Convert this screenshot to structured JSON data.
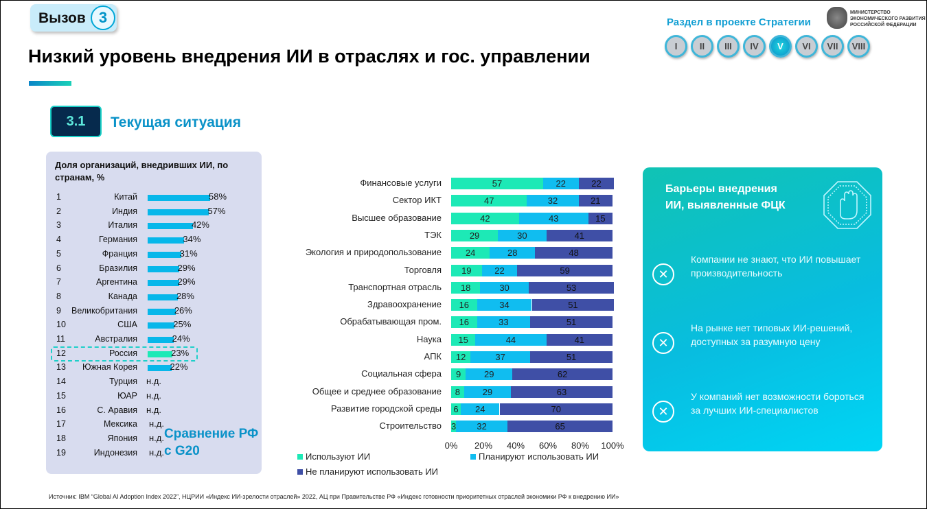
{
  "header": {
    "badge_label": "Вызов",
    "badge_number": "3",
    "title": "Низкий уровень внедрения ИИ в отраслях и гос. управлении",
    "strategy_label": "Раздел в проекте Стратегии",
    "ministry": "МИНИСТЕРСТВО ЭКОНОМИЧЕСКОГО РАЗВИТИЯ РОССИЙСКОЙ ФЕДЕРАЦИИ",
    "sections": [
      "I",
      "II",
      "III",
      "IV",
      "V",
      "VI",
      "VII",
      "VIII"
    ],
    "active_section": "V"
  },
  "section": {
    "number": "3.1",
    "title": "Текущая ситуация"
  },
  "comparison_label": "Сравнение РФ с G20",
  "barriers": {
    "title": "Барьеры внедрения ИИ, выявленные ФЦК",
    "icon": "stop-hand-icon",
    "items": [
      "Компании не знают, что ИИ повышает производительность",
      "На рынке нет типовых ИИ-решений, доступных за разумную цену",
      "У компаний нет возможности бороться за лучших ИИ-специалистов"
    ]
  },
  "source": "Источник: IBM “Global AI Adoption Index 2022”, НЦРИИ «Индекс ИИ-зрелости отраслей» 2022, АЦ при Правительстве РФ «Индекс готовности приоритетных отраслей экономики РФ к внедрению ИИ»",
  "chart_data": [
    {
      "type": "bar",
      "orientation": "horizontal",
      "title": "Доля организаций, внедривших ИИ, по странам, %",
      "ranks": [
        1,
        2,
        3,
        4,
        5,
        6,
        7,
        8,
        9,
        10,
        11,
        12,
        13,
        14,
        15,
        16,
        17,
        18,
        19
      ],
      "categories": [
        "Китай",
        "Индия",
        "Италия",
        "Германия",
        "Франция",
        "Бразилия",
        "Аргентина",
        "Канада",
        "Великобритания",
        "США",
        "Австралия",
        "Россия",
        "Южная Корея",
        "Турция",
        "ЮАР",
        "С. Аравия",
        "Мексика",
        "Япония",
        "Индонезия"
      ],
      "values": [
        58,
        57,
        42,
        34,
        31,
        29,
        29,
        28,
        26,
        25,
        24,
        23,
        22,
        null,
        null,
        null,
        null,
        null,
        null
      ],
      "no_data_label": "н.д.",
      "highlight": "Россия",
      "colors": {
        "bar": "#07b7ea",
        "highlight": "#1de9b6"
      }
    },
    {
      "type": "bar",
      "orientation": "horizontal",
      "stacked": "percent",
      "categories": [
        "Финансовые услуги",
        "Сектор ИКТ",
        "Высшее образование",
        "ТЭК",
        "Экология и природопользование",
        "Торговля",
        "Транспортная отрасль",
        "Здравоохранение",
        "Обрабатывающая пром.",
        "Наука",
        "АПК",
        "Социальная сфера",
        "Общее и среднее образование",
        "Развитие городской среды",
        "Строительство"
      ],
      "series": [
        {
          "name": "Используют ИИ",
          "color": "#1de9b6",
          "values": [
            57,
            47,
            42,
            29,
            24,
            19,
            18,
            16,
            16,
            15,
            12,
            9,
            8,
            6,
            3
          ]
        },
        {
          "name": "Планируют использовать ИИ",
          "color": "#10bdf0",
          "values": [
            22,
            32,
            43,
            30,
            28,
            22,
            30,
            34,
            33,
            44,
            37,
            29,
            29,
            24,
            32
          ]
        },
        {
          "name": "Не планируют использовать ИИ",
          "color": "#3f4fa6",
          "values": [
            22,
            21,
            15,
            41,
            48,
            59,
            53,
            51,
            51,
            41,
            51,
            62,
            63,
            70,
            65
          ]
        }
      ],
      "xticks": [
        "0%",
        "20%",
        "40%",
        "60%",
        "80%",
        "100%"
      ],
      "xlim": [
        0,
        100
      ],
      "legend": "bottom"
    }
  ]
}
